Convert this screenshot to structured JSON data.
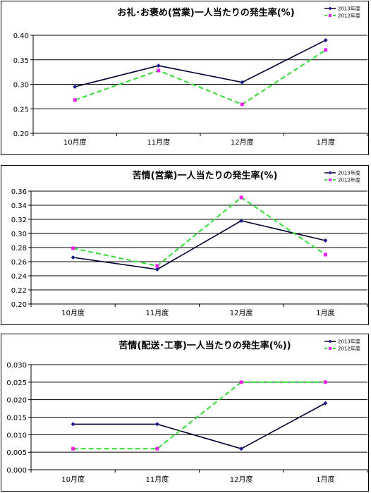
{
  "colors": {
    "s2013": "#000033",
    "s2013_marker": "#1a1a8c",
    "s2012": "#33dd33",
    "s2012_marker": "#ee22ee"
  },
  "chart_data": [
    {
      "type": "line",
      "title": "お礼･お褒め(営業)一人当たりの発生率(%)",
      "categories": [
        "10月度",
        "11月度",
        "12月度",
        "1月度"
      ],
      "ylim": [
        0.2,
        0.4
      ],
      "yticks": [
        "0.20",
        "0.25",
        "0.30",
        "0.35",
        "0.40"
      ],
      "legend_position": "top-right",
      "series": [
        {
          "name": "2013年度",
          "values": [
            0.295,
            0.338,
            0.304,
            0.39
          ]
        },
        {
          "name": "2012年度",
          "values": [
            0.268,
            0.328,
            0.259,
            0.37
          ]
        }
      ]
    },
    {
      "type": "line",
      "title": "苦情(営業)一人当たりの発生率(%)",
      "categories": [
        "10月度",
        "11月度",
        "12月度",
        "1月度"
      ],
      "ylim": [
        0.2,
        0.36
      ],
      "yticks": [
        "0.20",
        "0.22",
        "0.24",
        "0.26",
        "0.28",
        "0.30",
        "0.32",
        "0.34",
        "0.36"
      ],
      "legend_position": "top-right",
      "series": [
        {
          "name": "2013年度",
          "values": [
            0.266,
            0.249,
            0.318,
            0.29
          ]
        },
        {
          "name": "2012年度",
          "values": [
            0.279,
            0.254,
            0.351,
            0.27
          ]
        }
      ]
    },
    {
      "type": "line",
      "title": "苦情(配送･工事)一人当たりの発生率(%))",
      "categories": [
        "10月度",
        "11月度",
        "12月度",
        "1月度"
      ],
      "ylim": [
        0.0,
        0.03
      ],
      "yticks": [
        "0.000",
        "0.005",
        "0.010",
        "0.015",
        "0.020",
        "0.025",
        "0.030"
      ],
      "legend_position": "top-right",
      "series": [
        {
          "name": "2013年度",
          "values": [
            0.013,
            0.013,
            0.006,
            0.019
          ]
        },
        {
          "name": "2012年度",
          "values": [
            0.006,
            0.006,
            0.025,
            0.025
          ]
        }
      ]
    }
  ]
}
